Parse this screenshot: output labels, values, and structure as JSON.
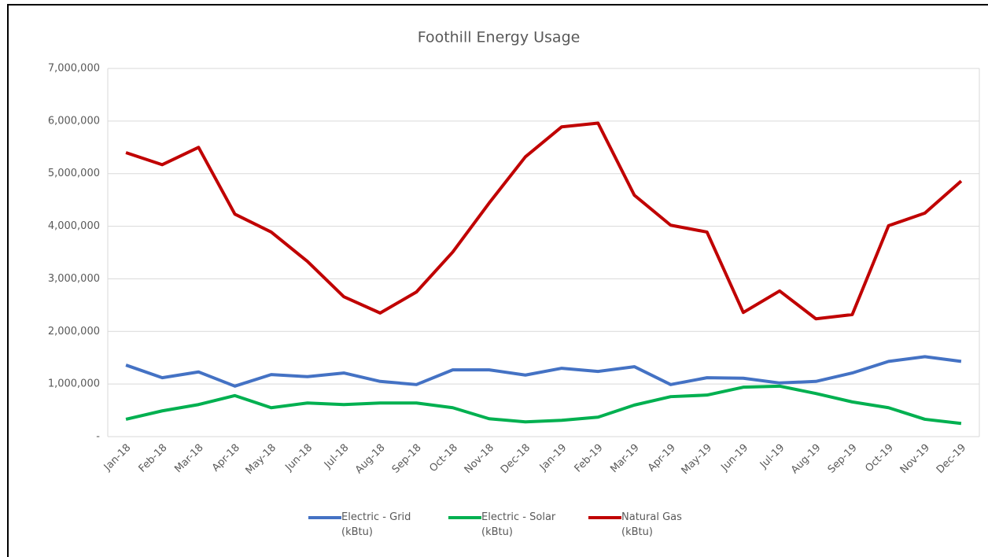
{
  "chart_data": {
    "type": "line",
    "title": "Foothill Energy Usage",
    "categories": [
      "Jan-18",
      "Feb-18",
      "Mar-18",
      "Apr-18",
      "May-18",
      "Jun-18",
      "Jul-18",
      "Aug-18",
      "Sep-18",
      "Oct-18",
      "Nov-18",
      "Dec-18",
      "Jan-19",
      "Feb-19",
      "Mar-19",
      "Apr-19",
      "May-19",
      "Jun-19",
      "Jul-19",
      "Aug-19",
      "Sep-19",
      "Oct-19",
      "Nov-19",
      "Dec-19"
    ],
    "series": [
      {
        "name": "Electric - Grid (kBtu)",
        "color": "#4472c4",
        "values": [
          1360000,
          1120000,
          1230000,
          960000,
          1180000,
          1140000,
          1210000,
          1050000,
          990000,
          1270000,
          1270000,
          1170000,
          1300000,
          1240000,
          1330000,
          990000,
          1120000,
          1110000,
          1020000,
          1050000,
          1210000,
          1430000,
          1520000,
          1430000
        ]
      },
      {
        "name": "Electric - Solar (kBtu)",
        "color": "#00b050",
        "values": [
          330000,
          490000,
          610000,
          780000,
          550000,
          640000,
          610000,
          640000,
          640000,
          550000,
          340000,
          280000,
          310000,
          370000,
          600000,
          760000,
          790000,
          940000,
          960000,
          820000,
          660000,
          550000,
          330000,
          250000
        ]
      },
      {
        "name": "Natural Gas (kBtu)",
        "color": "#c00000",
        "values": [
          5400000,
          5170000,
          5500000,
          4230000,
          3890000,
          3330000,
          2660000,
          2350000,
          2750000,
          3510000,
          4440000,
          5320000,
          5890000,
          5960000,
          4590000,
          4020000,
          3890000,
          2360000,
          2770000,
          2240000,
          2320000,
          4010000,
          4250000,
          4860000
        ]
      }
    ],
    "ylim": [
      0,
      7000000
    ],
    "yticks": [
      {
        "value": 0,
        "label": "-"
      },
      {
        "value": 1000000,
        "label": "1,000,000"
      },
      {
        "value": 2000000,
        "label": "2,000,000"
      },
      {
        "value": 3000000,
        "label": "3,000,000"
      },
      {
        "value": 4000000,
        "label": "4,000,000"
      },
      {
        "value": 5000000,
        "label": "5,000,000"
      },
      {
        "value": 6000000,
        "label": "6,000,000"
      },
      {
        "value": 7000000,
        "label": "7,000,000"
      }
    ],
    "grid": true,
    "legend": "bottom"
  }
}
